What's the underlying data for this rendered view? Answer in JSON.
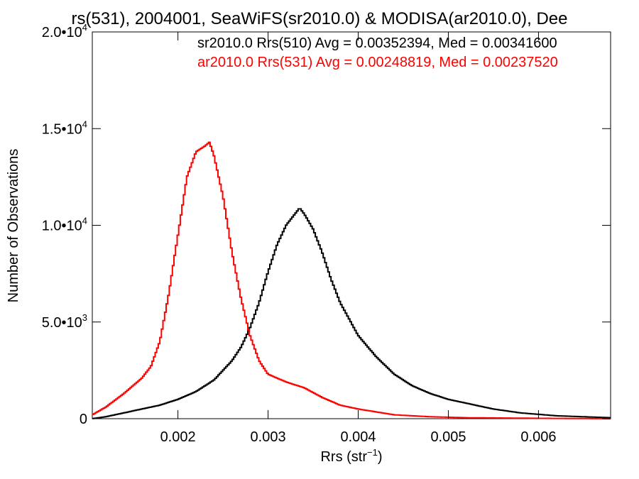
{
  "chart_data": {
    "type": "line",
    "title": "rs(531), 2004001, SeaWiFS(sr2010.0) & MODISA(ar2010.0), Dee",
    "xlabel": "Rrs (str",
    "xlabel_sup": "−1",
    "xlabel_close": ")",
    "ylabel": "Number of Observations",
    "xlim": [
      0.00105,
      0.0068
    ],
    "ylim": [
      0,
      20000
    ],
    "x_ticks": [
      0.002,
      0.003,
      0.004,
      0.005,
      0.006
    ],
    "x_tick_labels": [
      "0.002",
      "0.003",
      "0.004",
      "0.005",
      "0.006"
    ],
    "y_ticks": [
      0,
      5000,
      10000,
      15000,
      20000
    ],
    "y_tick_labels": [
      {
        "mant": "0",
        "exp": ""
      },
      {
        "mant": "5.0•10",
        "exp": "3"
      },
      {
        "mant": "1.0•10",
        "exp": "4"
      },
      {
        "mant": "1.5•10",
        "exp": "4"
      },
      {
        "mant": "2.0•10",
        "exp": "4"
      }
    ],
    "grid": false,
    "legend_position": "top-right",
    "series": [
      {
        "name": "sr2010.0 Rrs(510) Avg = 0.00352394, Med = 0.00341600",
        "color": "#000000",
        "x": [
          0.00105,
          0.0012,
          0.0014,
          0.0016,
          0.0018,
          0.002,
          0.0022,
          0.0024,
          0.0026,
          0.0027,
          0.0028,
          0.0029,
          0.003,
          0.0031,
          0.0032,
          0.0033,
          0.00335,
          0.0034,
          0.0035,
          0.0036,
          0.0037,
          0.0038,
          0.004,
          0.0042,
          0.0044,
          0.0046,
          0.0048,
          0.005,
          0.0052,
          0.0055,
          0.0058,
          0.0062,
          0.0068
        ],
        "y": [
          0,
          100,
          300,
          500,
          700,
          1000,
          1400,
          2000,
          3000,
          3700,
          4700,
          6000,
          7600,
          9000,
          10000,
          10600,
          10900,
          10600,
          9800,
          8600,
          7200,
          6000,
          4300,
          3200,
          2300,
          1700,
          1300,
          1000,
          800,
          500,
          300,
          150,
          50
        ]
      },
      {
        "name": "ar2010.0 Rrs(531) Avg = 0.00248819, Med = 0.00237520",
        "color": "#ff0000",
        "x": [
          0.00105,
          0.0012,
          0.0014,
          0.0016,
          0.0017,
          0.0018,
          0.0019,
          0.002,
          0.0021,
          0.0022,
          0.0023,
          0.00235,
          0.0024,
          0.0025,
          0.0026,
          0.0027,
          0.0028,
          0.0029,
          0.003,
          0.0032,
          0.0034,
          0.0036,
          0.0038,
          0.004,
          0.0044,
          0.0048,
          0.0052,
          0.006,
          0.0068
        ],
        "y": [
          200,
          600,
          1300,
          2100,
          2700,
          4000,
          6500,
          9500,
          12500,
          13800,
          14100,
          14300,
          13600,
          11500,
          8600,
          6200,
          4300,
          3000,
          2300,
          1900,
          1600,
          1100,
          700,
          500,
          200,
          100,
          50,
          20,
          0
        ]
      }
    ]
  }
}
